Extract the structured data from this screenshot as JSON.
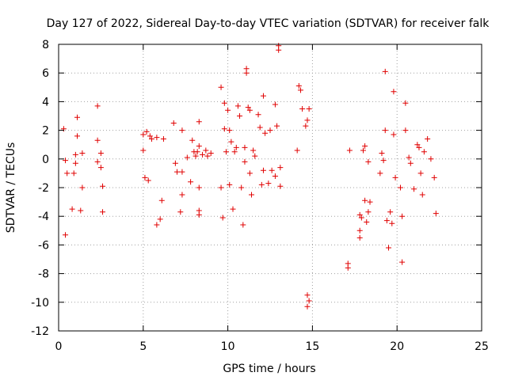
{
  "chart_data": {
    "type": "scatter",
    "title": "Day 127 of 2022, Sidereal Day-to-day VTEC variation (SDTVAR) for receiver falk",
    "xlabel": "GPS time / hours",
    "ylabel": "SDTVAR / TECUs",
    "xlim": [
      0,
      25
    ],
    "ylim": [
      -12,
      8
    ],
    "xticks": [
      0,
      5,
      10,
      15,
      20,
      25
    ],
    "yticks": [
      -12,
      -10,
      -8,
      -6,
      -4,
      -2,
      0,
      2,
      4,
      6,
      8
    ],
    "grid": true,
    "marker": "+",
    "marker_color": "#e00000",
    "series": [
      {
        "name": "SDTVAR",
        "points": [
          [
            0.3,
            2.1
          ],
          [
            0.4,
            -5.3
          ],
          [
            0.5,
            -1.0
          ],
          [
            0.4,
            -0.1
          ],
          [
            0.8,
            -3.5
          ],
          [
            0.9,
            -1.0
          ],
          [
            1.0,
            -0.3
          ],
          [
            1.0,
            0.3
          ],
          [
            1.1,
            2.9
          ],
          [
            1.1,
            1.6
          ],
          [
            1.3,
            -3.6
          ],
          [
            1.4,
            -2.0
          ],
          [
            1.4,
            0.4
          ],
          [
            2.3,
            3.7
          ],
          [
            2.3,
            1.3
          ],
          [
            2.3,
            -0.2
          ],
          [
            2.5,
            0.4
          ],
          [
            2.5,
            -0.6
          ],
          [
            2.6,
            -1.9
          ],
          [
            2.6,
            -3.7
          ],
          [
            5.0,
            1.7
          ],
          [
            5.0,
            0.6
          ],
          [
            5.1,
            -1.3
          ],
          [
            5.2,
            1.9
          ],
          [
            5.3,
            -1.5
          ],
          [
            5.4,
            1.6
          ],
          [
            5.5,
            1.4
          ],
          [
            5.8,
            -4.6
          ],
          [
            5.8,
            1.5
          ],
          [
            6.0,
            -4.2
          ],
          [
            6.1,
            -2.9
          ],
          [
            6.2,
            1.4
          ],
          [
            6.8,
            2.5
          ],
          [
            6.9,
            -0.3
          ],
          [
            7.0,
            -0.9
          ],
          [
            7.2,
            -3.7
          ],
          [
            7.3,
            -2.5
          ],
          [
            7.3,
            2.0
          ],
          [
            7.3,
            -0.9
          ],
          [
            7.6,
            0.1
          ],
          [
            7.8,
            -1.6
          ],
          [
            7.9,
            1.3
          ],
          [
            8.0,
            0.5
          ],
          [
            8.1,
            0.2
          ],
          [
            8.2,
            0.5
          ],
          [
            8.3,
            0.9
          ],
          [
            8.3,
            -3.9
          ],
          [
            8.3,
            -3.6
          ],
          [
            8.3,
            -2.0
          ],
          [
            8.3,
            2.6
          ],
          [
            8.5,
            0.3
          ],
          [
            8.7,
            0.6
          ],
          [
            8.8,
            0.2
          ],
          [
            9.0,
            0.4
          ],
          [
            9.6,
            5.0
          ],
          [
            9.6,
            -2.0
          ],
          [
            9.7,
            -4.1
          ],
          [
            9.8,
            3.9
          ],
          [
            9.8,
            2.1
          ],
          [
            9.9,
            0.5
          ],
          [
            10.0,
            3.4
          ],
          [
            10.1,
            2.0
          ],
          [
            10.1,
            -1.8
          ],
          [
            10.2,
            1.2
          ],
          [
            10.3,
            -3.5
          ],
          [
            10.4,
            0.5
          ],
          [
            10.5,
            0.8
          ],
          [
            10.6,
            3.7
          ],
          [
            10.7,
            3.0
          ],
          [
            10.8,
            -2.0
          ],
          [
            10.9,
            -4.6
          ],
          [
            11.0,
            0.8
          ],
          [
            11.0,
            -0.2
          ],
          [
            11.1,
            6.3
          ],
          [
            11.1,
            6.0
          ],
          [
            11.2,
            3.6
          ],
          [
            11.3,
            3.4
          ],
          [
            11.3,
            -1.0
          ],
          [
            11.4,
            -2.5
          ],
          [
            11.5,
            0.6
          ],
          [
            11.6,
            0.2
          ],
          [
            11.8,
            3.1
          ],
          [
            11.9,
            2.2
          ],
          [
            12.0,
            -1.8
          ],
          [
            12.1,
            4.4
          ],
          [
            12.1,
            -0.8
          ],
          [
            12.2,
            1.8
          ],
          [
            12.4,
            -1.7
          ],
          [
            12.5,
            2.0
          ],
          [
            12.6,
            -0.8
          ],
          [
            12.8,
            3.8
          ],
          [
            12.8,
            -1.2
          ],
          [
            12.9,
            2.3
          ],
          [
            13.0,
            7.9
          ],
          [
            13.0,
            7.6
          ],
          [
            13.1,
            -1.9
          ],
          [
            13.1,
            -0.6
          ],
          [
            14.1,
            0.6
          ],
          [
            14.2,
            5.1
          ],
          [
            14.3,
            4.8
          ],
          [
            14.4,
            3.5
          ],
          [
            14.6,
            2.3
          ],
          [
            14.7,
            2.7
          ],
          [
            14.8,
            3.5
          ],
          [
            14.7,
            -9.5
          ],
          [
            14.8,
            -9.9
          ],
          [
            14.7,
            -10.3
          ],
          [
            17.1,
            -7.3
          ],
          [
            17.1,
            -7.6
          ],
          [
            17.2,
            0.6
          ],
          [
            17.8,
            -3.9
          ],
          [
            17.8,
            -5.0
          ],
          [
            17.8,
            -5.5
          ],
          [
            17.9,
            -4.1
          ],
          [
            18.0,
            0.6
          ],
          [
            18.1,
            0.9
          ],
          [
            18.1,
            -2.9
          ],
          [
            18.2,
            -4.4
          ],
          [
            18.3,
            -0.2
          ],
          [
            18.3,
            -3.7
          ],
          [
            18.4,
            -3.0
          ],
          [
            19.0,
            -1.0
          ],
          [
            19.1,
            0.4
          ],
          [
            19.2,
            -0.1
          ],
          [
            19.3,
            6.1
          ],
          [
            19.3,
            2.0
          ],
          [
            19.4,
            -4.3
          ],
          [
            19.5,
            -6.2
          ],
          [
            19.6,
            -3.7
          ],
          [
            19.7,
            -4.5
          ],
          [
            19.8,
            4.7
          ],
          [
            19.8,
            1.7
          ],
          [
            19.9,
            -1.3
          ],
          [
            20.2,
            -2.0
          ],
          [
            20.3,
            -4.0
          ],
          [
            20.3,
            -7.2
          ],
          [
            20.5,
            3.9
          ],
          [
            20.5,
            2.0
          ],
          [
            20.7,
            0.1
          ],
          [
            20.8,
            -0.3
          ],
          [
            21.0,
            -2.1
          ],
          [
            21.2,
            1.0
          ],
          [
            21.3,
            0.8
          ],
          [
            21.4,
            -1.0
          ],
          [
            21.5,
            -2.5
          ],
          [
            21.6,
            0.5
          ],
          [
            21.8,
            1.4
          ],
          [
            22.0,
            0.0
          ],
          [
            22.2,
            -1.3
          ],
          [
            22.3,
            -3.8
          ]
        ]
      }
    ]
  }
}
